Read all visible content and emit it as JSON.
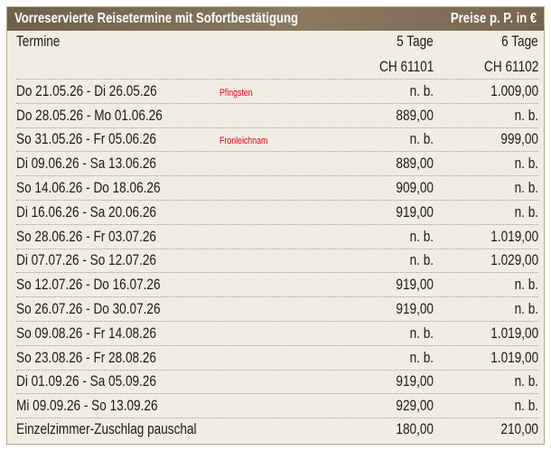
{
  "header": {
    "title": "Vorreservierte Reisetermine mit Sofortbestätigung",
    "price_note": "Preise p. P. in €"
  },
  "columns": {
    "termine": "Termine",
    "col1_label": "5 Tage",
    "col2_label": "6 Tage",
    "col1_code": "CH 61101",
    "col2_code": "CH 61102"
  },
  "rows": [
    {
      "date": "Do  21.05.26 - Di   26.05.26",
      "note": "Pfingsten",
      "p1": "n. b.",
      "p2": "1.009,00"
    },
    {
      "date": "Do  28.05.26 - Mo  01.06.26",
      "note": "",
      "p1": "889,00",
      "p2": "n. b."
    },
    {
      "date": "So  31.05.26 - Fr   05.06.26",
      "note": "Fronleichnam",
      "p1": "n. b.",
      "p2": "999,00"
    },
    {
      "date": "Di   09.06.26 - Sa  13.06.26",
      "note": "",
      "p1": "889,00",
      "p2": "n. b."
    },
    {
      "date": "So  14.06.26 - Do  18.06.26",
      "note": "",
      "p1": "909,00",
      "p2": "n. b."
    },
    {
      "date": "Di   16.06.26 - Sa  20.06.26",
      "note": "",
      "p1": "919,00",
      "p2": "n. b."
    },
    {
      "date": "So  28.06.26 - Fr   03.07.26",
      "note": "",
      "p1": "n. b.",
      "p2": "1.019,00"
    },
    {
      "date": "Di   07.07.26 - So  12.07.26",
      "note": "",
      "p1": "n. b.",
      "p2": "1.029,00"
    },
    {
      "date": "So  12.07.26 - Do  16.07.26",
      "note": "",
      "p1": "919,00",
      "p2": "n. b."
    },
    {
      "date": "So  26.07.26 - Do  30.07.26",
      "note": "",
      "p1": "919,00",
      "p2": "n. b."
    },
    {
      "date": "So  09.08.26 - Fr   14.08.26",
      "note": "",
      "p1": "n. b.",
      "p2": "1.019,00"
    },
    {
      "date": "So  23.08.26 - Fr   28.08.26",
      "note": "",
      "p1": "n. b.",
      "p2": "1.019,00"
    },
    {
      "date": "Di   01.09.26 - Sa  05.09.26",
      "note": "",
      "p1": "919,00",
      "p2": "n. b."
    },
    {
      "date": "Mi  09.09.26 - So  13.09.26",
      "note": "",
      "p1": "929,00",
      "p2": "n. b."
    }
  ],
  "footer": {
    "label": "Einzelzimmer-Zuschlag pauschal",
    "p1": "180,00",
    "p2": "210,00"
  }
}
